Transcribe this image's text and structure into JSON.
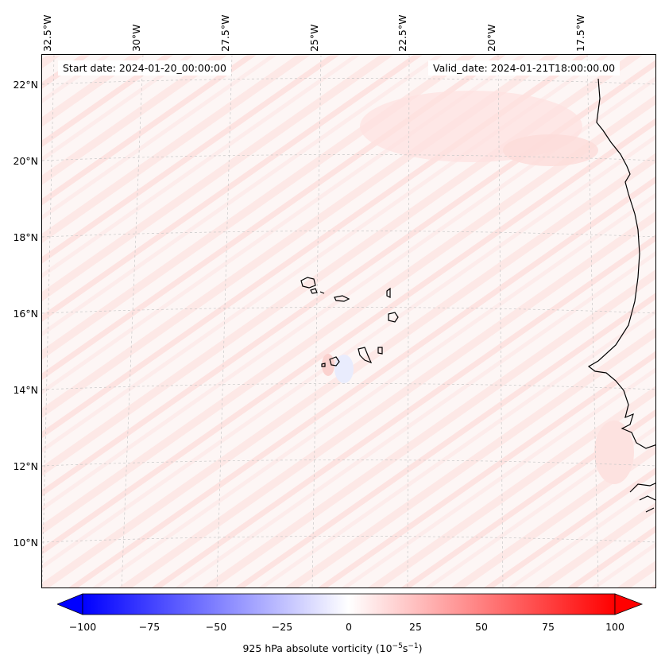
{
  "map": {
    "start_date": "Start date: 2024-01-20_00:00:00",
    "valid_date": "Valid_date: 2024-01-21T18:00:00.00",
    "lon_labels": [
      "32.5°W",
      "30°W",
      "27.5°W",
      "25°W",
      "22.5°W",
      "20°W",
      "17.5°W"
    ],
    "lat_labels": [
      "22°N",
      "20°N",
      "18°N",
      "16°N",
      "14°N",
      "12°N",
      "10°N"
    ],
    "colors": {
      "positive": "#ff0000",
      "negative": "#0000ff",
      "zero": "#ffffff",
      "background_tint": "#fdf6f5",
      "coast": "#000000"
    }
  },
  "colorbar": {
    "ticks": [
      "−100",
      "−75",
      "−50",
      "−25",
      "0",
      "25",
      "50",
      "75",
      "100"
    ],
    "range": [
      -100,
      100
    ],
    "title_main": "925 hPa absolute vorticity (10",
    "title_exp1": "−5",
    "title_mid": "s",
    "title_exp2": "−1",
    "title_end": ")"
  }
}
